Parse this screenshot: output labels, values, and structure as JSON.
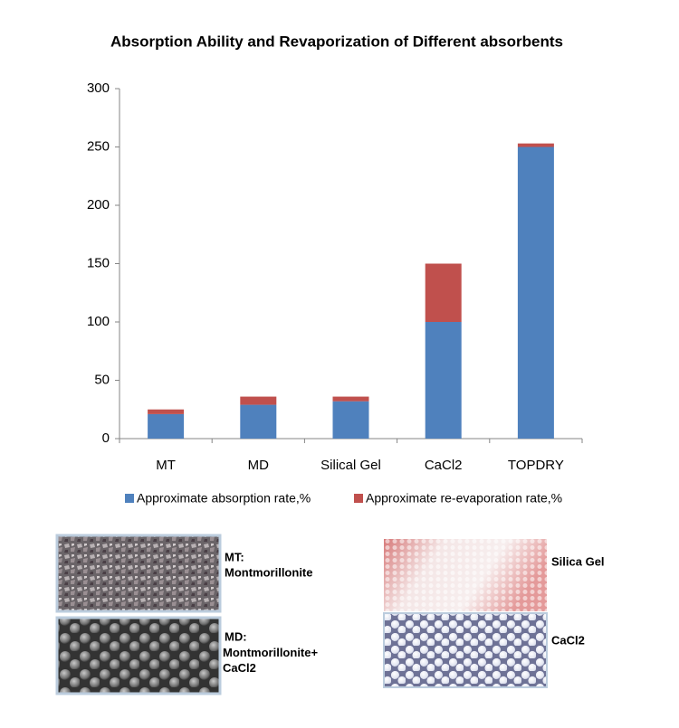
{
  "chart_data": {
    "type": "stacked_bar",
    "title": "Absorption Ability and Revaporization of Different absorbents",
    "categories": [
      "MT",
      "MD",
      "Silical Gel",
      "CaCl2",
      "TOPDRY"
    ],
    "series": [
      {
        "name": "Approximate absorption rate,%",
        "color": "#4f81bd",
        "values": [
          21,
          29,
          32,
          100,
          250
        ]
      },
      {
        "name": "Approximate re-evaporation rate,%",
        "color": "#c0504d",
        "values": [
          4,
          7,
          4,
          50,
          3
        ]
      }
    ],
    "ylim": [
      0,
      300
    ],
    "yticks": [
      0,
      50,
      100,
      150,
      200,
      250,
      300
    ],
    "grid": false,
    "legend": "bottom"
  },
  "samples": [
    {
      "label": "MT:",
      "description": "Montmorillonite"
    },
    {
      "label": "MD:",
      "description": "Montmorillonite+ CaCl2"
    },
    {
      "label": "Silica Gel",
      "description": null
    },
    {
      "label": "CaCl2",
      "description": null
    }
  ]
}
